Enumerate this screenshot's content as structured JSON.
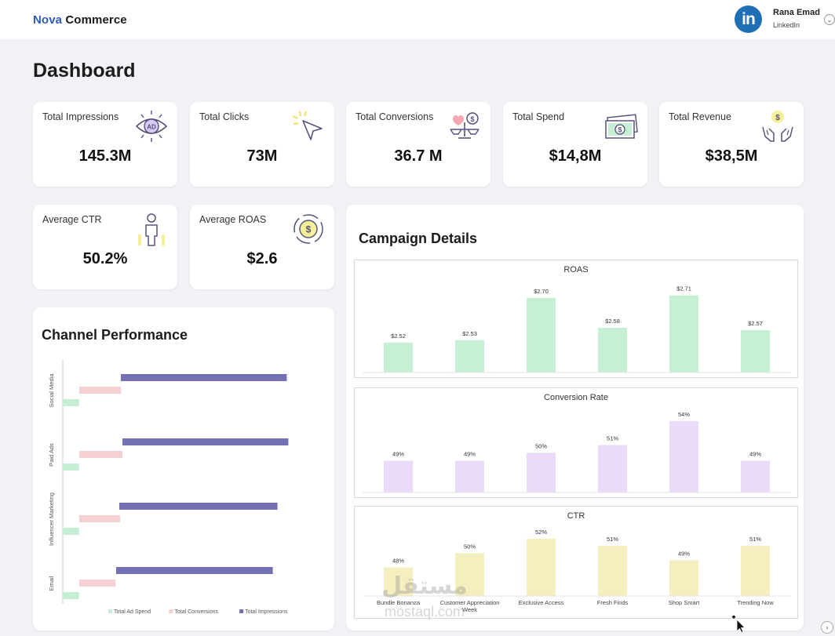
{
  "brand": {
    "part1": "Nova",
    "part2": "Commerce"
  },
  "user": {
    "avatar_text": "in",
    "name": "Rana Emad",
    "subtitle": "LinkedIn",
    "chevron": "⌄"
  },
  "page_title": "Dashboard",
  "kpis": [
    {
      "label": "Total Impressions",
      "value": "145.3M",
      "icon": "eye-ad-icon"
    },
    {
      "label": "Total Clicks",
      "value": "73M",
      "icon": "cursor-click-icon"
    },
    {
      "label": "Total Conversions",
      "value": "36.7 M",
      "icon": "balance-scale-icon"
    },
    {
      "label": "Total Spend",
      "value": "$14,8M",
      "icon": "cash-bill-icon"
    },
    {
      "label": "Total Revenue",
      "value": "$38,5M",
      "icon": "hands-coin-icon"
    },
    {
      "label": "Average CTR",
      "value": "50.2%",
      "icon": "person-icon"
    },
    {
      "label": "Average ROAS",
      "value": "$2.6",
      "icon": "coin-cycle-icon"
    }
  ],
  "channel_performance": {
    "title": "Channel Performance",
    "chart_data": {
      "type": "bar",
      "orientation": "horizontal",
      "categories": [
        "Social Media",
        "Paid Ads",
        "Influencer Marketing",
        "Email"
      ],
      "series": [
        {
          "name": "Total Ad Spend",
          "values": [
            21,
            21,
            21,
            21
          ],
          "color": "#c6eed4"
        },
        {
          "name": "Total Conversions",
          "values": [
            54,
            56,
            53,
            47
          ],
          "color": "#f6cfd2"
        },
        {
          "name": "Total Impressions",
          "values": [
            290,
            290,
            280,
            278
          ],
          "color": "#7470b4"
        }
      ],
      "xlim": [
        0,
        300
      ],
      "legend": "bottom",
      "grid": false
    }
  },
  "campaign_details": {
    "title": "Campaign Details",
    "charts": [
      {
        "type": "bar",
        "title": "ROAS",
        "categories": [
          "Bundle Bonanza",
          "Customer Appreciation Week",
          "Exclusive Access",
          "Fresh Finds",
          "Shop Smart",
          "Trending Now"
        ],
        "values": [
          2.52,
          2.53,
          2.7,
          2.58,
          2.71,
          2.57
        ],
        "labels": [
          "$2.52",
          "$2.53",
          "$2.70",
          "$2.58",
          "$2.71",
          "$2.57"
        ],
        "ylim": [
          2.4,
          2.75
        ],
        "color": "#c6f0d4",
        "show_categories": false
      },
      {
        "type": "bar",
        "title": "Conversion Rate",
        "categories": [
          "Bundle Bonanza",
          "Customer Appreciation Week",
          "Exclusive Access",
          "Fresh Finds",
          "Shop Smart",
          "Trending Now"
        ],
        "values": [
          49,
          49,
          50,
          51,
          54,
          49
        ],
        "labels": [
          "49%",
          "49%",
          "50%",
          "51%",
          "54%",
          "49%"
        ],
        "ylim": [
          45,
          55
        ],
        "color": "#eadbfb",
        "show_categories": false
      },
      {
        "type": "bar",
        "title": "CTR",
        "categories": [
          "Bundle Bonanza",
          "Customer Appreciation Week",
          "Exclusive Access",
          "Fresh Finds",
          "Shop Smart",
          "Trending Now"
        ],
        "values": [
          48,
          50,
          52,
          51,
          49,
          51
        ],
        "labels": [
          "48%",
          "50%",
          "52%",
          "51%",
          "49%",
          "51%"
        ],
        "ylim": [
          44,
          53
        ],
        "color": "#f5efbf",
        "show_categories": true
      }
    ]
  },
  "watermark": {
    "arabic": "مستقل",
    "latin": "mostaql.com"
  },
  "corner_button": "›"
}
